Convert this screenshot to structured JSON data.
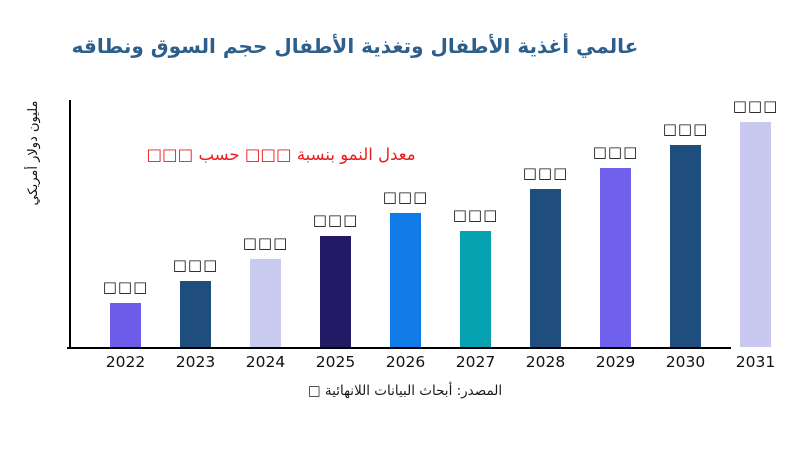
{
  "title": {
    "text": "عالمي أغذية الأطفال وتغذية الأطفال حجم السوق ونطاقه",
    "color": "#2E5F8C"
  },
  "annotation": {
    "text": "معدل النمو بنسبة □□□ حسب □□□",
    "color": "#ED1C1C"
  },
  "y_axis": {
    "label": "مليون دولار أمريكي"
  },
  "source": {
    "text": "المصدر: أبحاث البيانات اللانهائية □"
  },
  "chart_data": {
    "type": "bar",
    "title": "عالمي أغذية الأطفال وتغذية الأطفال حجم السوق ونطاقه",
    "xlabel": "",
    "ylabel": "مليون دولار أمريكي",
    "annotation": "معدل النمو بنسبة □□□ حسب □□□",
    "source": "المصدر: أبحاث البيانات اللانهائية □",
    "grid": false,
    "legend": false,
    "categories": [
      "2022",
      "2023",
      "2024",
      "2025",
      "2026",
      "2027",
      "2028",
      "2029",
      "2030",
      "2031"
    ],
    "values_display": [
      "□□□",
      "□□□",
      "□□□",
      "□□□",
      "□□□",
      "□□□",
      "□□□",
      "□□□",
      "□□□",
      "□□□"
    ],
    "values_relative": [
      44,
      66,
      88,
      111,
      134,
      116,
      158,
      179,
      202,
      225
    ],
    "bar_colors": [
      "#6C5CE9",
      "#1F4E7E",
      "#C9CAEF",
      "#231A66",
      "#117CE8",
      "#07A2B2",
      "#1F4E7E",
      "#6F61EE",
      "#1F4E7E",
      "#C9C8F0"
    ],
    "note": "y-axis has no numeric ticks; bar value labels render as placeholder squares; values_relative are bar heights in px measured from baseline"
  }
}
